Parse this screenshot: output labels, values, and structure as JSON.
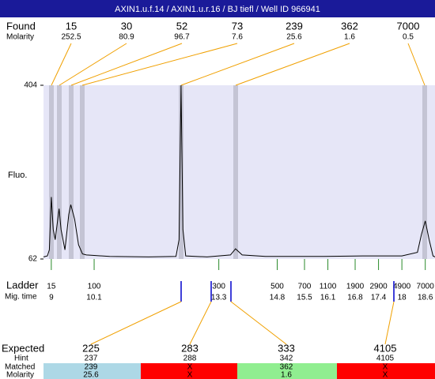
{
  "title": "AXIN1.u.f.14 / AXIN1.u.r.16 / BJ tiefl / Well ID 966941",
  "found": {
    "label": "Found",
    "molarity_label": "Molarity",
    "sizes": [
      15,
      30,
      52,
      73,
      239,
      362,
      7000
    ],
    "molarities": [
      252.5,
      80.9,
      96.7,
      7.6,
      25.6,
      1.6,
      0.5
    ]
  },
  "chart_data": {
    "type": "line",
    "ylabel": "Fluo.",
    "ylim": [
      62,
      404
    ],
    "yticks": [
      62,
      404
    ],
    "xlim": [
      8.8,
      18.85
    ],
    "x": [
      8.8,
      8.9,
      8.95,
      9.0,
      9.05,
      9.1,
      9.2,
      9.25,
      9.35,
      9.45,
      9.5,
      9.6,
      9.7,
      9.8,
      9.9,
      10.1,
      10.5,
      11.5,
      12.2,
      12.28,
      12.33,
      12.38,
      12.45,
      13.0,
      13.6,
      13.73,
      13.9,
      14.5,
      16.0,
      17.0,
      18.0,
      18.4,
      18.5,
      18.6,
      18.7,
      18.8,
      18.85
    ],
    "values": [
      66,
      68,
      80,
      184,
      120,
      100,
      161,
      120,
      80,
      150,
      169,
      140,
      90,
      72,
      70,
      69,
      67,
      66,
      67,
      100,
      404,
      120,
      68,
      66,
      70,
      82,
      70,
      67,
      67,
      68,
      68,
      75,
      110,
      137,
      100,
      68,
      66
    ],
    "color": "#000000"
  },
  "ladder": {
    "label": "Ladder",
    "time_label": "Mig. time",
    "sizes": [
      15,
      100,
      300,
      500,
      700,
      1100,
      1900,
      2900,
      4900,
      7000
    ],
    "times": [
      9,
      10.1,
      13.3,
      14.8,
      15.5,
      16.1,
      16.8,
      17.4,
      18,
      18.6
    ]
  },
  "expected": {
    "label": "Expected",
    "hint_label": "Hint",
    "matched_label": "Matched",
    "molarity_label": "Molarity",
    "values": [
      "225",
      "283",
      "333",
      "4105"
    ],
    "hints": [
      "237",
      "288",
      "342",
      "4105"
    ],
    "matched": [
      "239",
      "X",
      "362",
      "X"
    ],
    "molarities": [
      "25.6",
      "X",
      "1.6",
      "X"
    ]
  }
}
